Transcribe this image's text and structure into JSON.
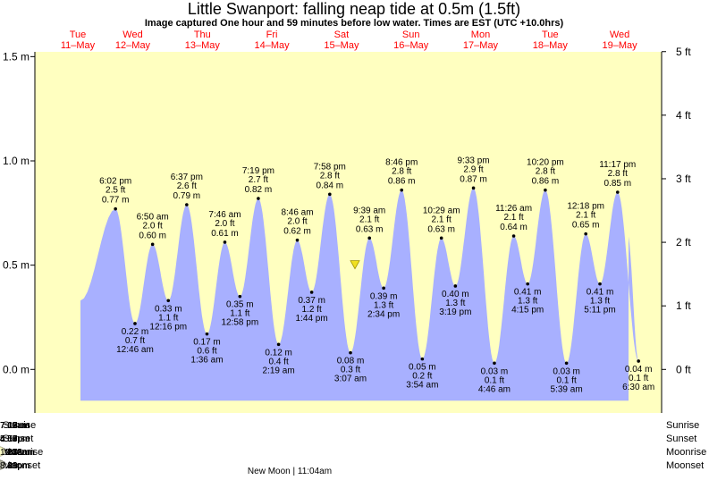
{
  "chart_data": {
    "type": "area",
    "title": "Little Swanport: falling  neap tide at 0.5m (1.5ft)",
    "subtitle": "Image captured One hour and 59 minutes before low water. Times are EST (UTC +10.0hrs)",
    "left_axis": {
      "ticks": [
        "1.5 m",
        "1.0 m",
        "0.5 m",
        "0.0 m"
      ],
      "ylim_m": [
        -0.15,
        1.52
      ]
    },
    "right_axis": {
      "ticks": [
        "5 ft",
        "4 ft",
        "3 ft",
        "2 ft",
        "1 ft",
        "0 ft"
      ]
    },
    "days": [
      {
        "name": "Tue",
        "date": "11–May"
      },
      {
        "name": "Wed",
        "date": "12–May"
      },
      {
        "name": "Thu",
        "date": "13–May"
      },
      {
        "name": "Fri",
        "date": "14–May"
      },
      {
        "name": "Sat",
        "date": "15–May"
      },
      {
        "name": "Sun",
        "date": "16–May"
      },
      {
        "name": "Mon",
        "date": "17–May"
      },
      {
        "name": "Tue",
        "date": "18–May"
      },
      {
        "name": "Wed",
        "date": "19–May"
      }
    ],
    "current_level_m": 0.5,
    "tides": [
      {
        "type": "high",
        "day": 0,
        "time": "6:02 pm",
        "ft": "2.5 ft",
        "m": 0.77
      },
      {
        "type": "low",
        "day": 1,
        "time": "12:46 am",
        "ft": "0.7 ft",
        "m": 0.22
      },
      {
        "type": "high",
        "day": 1,
        "time": "6:50 am",
        "ft": "2.0 ft",
        "m": 0.6
      },
      {
        "type": "low",
        "day": 1,
        "time": "12:16 pm",
        "ft": "1.1 ft",
        "m": 0.33
      },
      {
        "type": "high",
        "day": 1,
        "time": "6:37 pm",
        "ft": "2.6 ft",
        "m": 0.79
      },
      {
        "type": "low",
        "day": 2,
        "time": "1:36 am",
        "ft": "0.6 ft",
        "m": 0.17
      },
      {
        "type": "high",
        "day": 2,
        "time": "7:46 am",
        "ft": "2.0 ft",
        "m": 0.61
      },
      {
        "type": "low",
        "day": 2,
        "time": "12:58 pm",
        "ft": "1.1 ft",
        "m": 0.35
      },
      {
        "type": "high",
        "day": 2,
        "time": "7:19 pm",
        "ft": "2.7 ft",
        "m": 0.82
      },
      {
        "type": "low",
        "day": 3,
        "time": "2:19 am",
        "ft": "0.4 ft",
        "m": 0.12
      },
      {
        "type": "high",
        "day": 3,
        "time": "8:46 am",
        "ft": "2.0 ft",
        "m": 0.62
      },
      {
        "type": "low",
        "day": 3,
        "time": "1:44 pm",
        "ft": "1.2 ft",
        "m": 0.37
      },
      {
        "type": "high",
        "day": 3,
        "time": "7:58 pm",
        "ft": "2.8 ft",
        "m": 0.84
      },
      {
        "type": "low",
        "day": 4,
        "time": "3:07 am",
        "ft": "0.3 ft",
        "m": 0.08
      },
      {
        "type": "high",
        "day": 4,
        "time": "9:39 am",
        "ft": "2.1 ft",
        "m": 0.63
      },
      {
        "type": "low",
        "day": 4,
        "time": "2:34 pm",
        "ft": "1.3 ft",
        "m": 0.39
      },
      {
        "type": "high",
        "day": 4,
        "time": "8:46 pm",
        "ft": "2.8 ft",
        "m": 0.86
      },
      {
        "type": "low",
        "day": 5,
        "time": "3:54 am",
        "ft": "0.2 ft",
        "m": 0.05
      },
      {
        "type": "high",
        "day": 5,
        "time": "10:29 am",
        "ft": "2.1 ft",
        "m": 0.63
      },
      {
        "type": "low",
        "day": 5,
        "time": "3:19 pm",
        "ft": "1.3 ft",
        "m": 0.4
      },
      {
        "type": "high",
        "day": 5,
        "time": "9:33 pm",
        "ft": "2.9 ft",
        "m": 0.87
      },
      {
        "type": "low",
        "day": 6,
        "time": "4:46 am",
        "ft": "0.1 ft",
        "m": 0.03
      },
      {
        "type": "high",
        "day": 6,
        "time": "11:26 am",
        "ft": "2.1 ft",
        "m": 0.64
      },
      {
        "type": "low",
        "day": 6,
        "time": "4:15 pm",
        "ft": "1.3 ft",
        "m": 0.41
      },
      {
        "type": "high",
        "day": 6,
        "time": "10:20 pm",
        "ft": "2.8 ft",
        "m": 0.86
      },
      {
        "type": "low",
        "day": 7,
        "time": "5:39 am",
        "ft": "0.1 ft",
        "m": 0.03
      },
      {
        "type": "high",
        "day": 7,
        "time": "12:18 pm",
        "ft": "2.1 ft",
        "m": 0.65
      },
      {
        "type": "low",
        "day": 7,
        "time": "5:11 pm",
        "ft": "1.3 ft",
        "m": 0.41
      },
      {
        "type": "high",
        "day": 7,
        "time": "11:17 pm",
        "ft": "2.8 ft",
        "m": 0.85
      },
      {
        "type": "low",
        "day": 8,
        "time": "6:30 am",
        "ft": "0.1 ft",
        "m": 0.04
      }
    ],
    "rows": {
      "labels": [
        "Sunrise",
        "Sunset",
        "Moonrise",
        "Moonset"
      ],
      "sunrise": [
        {
          "day": 1,
          "time": "7:07am"
        },
        {
          "day": 2,
          "time": "7:08am"
        },
        {
          "day": 3,
          "time": "7:09am"
        },
        {
          "day": 4,
          "time": "7:10am"
        },
        {
          "day": 5,
          "time": "7:11am"
        },
        {
          "day": 6,
          "time": "7:12am"
        },
        {
          "day": 7,
          "time": "7:13am"
        }
      ],
      "sunset": [
        {
          "day": 1,
          "time": "5:00pm"
        },
        {
          "day": 2,
          "time": "4:59pm"
        },
        {
          "day": 3,
          "time": "4:58pm"
        },
        {
          "day": 4,
          "time": "4:57pm"
        },
        {
          "day": 5,
          "time": "4:56pm"
        },
        {
          "day": 6,
          "time": "4:55pm"
        },
        {
          "day": 7,
          "time": "4:54pm"
        },
        {
          "day": 8,
          "time": "4:53pm"
        }
      ],
      "moonrise": [
        {
          "day": 1,
          "time": "5:01am"
        },
        {
          "day": 2,
          "time": "6:08am"
        },
        {
          "day": 3,
          "time": "7:17am"
        },
        {
          "day": 4,
          "time": "8:24am"
        },
        {
          "day": 5,
          "time": "9:27am"
        },
        {
          "day": 6,
          "time": "10:22am"
        },
        {
          "day": 7,
          "time": "11:08am"
        }
      ],
      "moonset": [
        {
          "day": 1,
          "time": "3:29pm"
        },
        {
          "day": 2,
          "time": "4:01pm"
        },
        {
          "day": 3,
          "time": "4:40pm"
        },
        {
          "day": 4,
          "time": "5:28pm"
        },
        {
          "day": 5,
          "time": "6:26pm"
        },
        {
          "day": 6,
          "time": "7:33pm"
        },
        {
          "day": 7,
          "time": "8:46pm"
        }
      ]
    },
    "moon_phase_note": "New Moon | 11:04am",
    "colors": {
      "day_bg": "#ffffc0",
      "night_bg": "#a0a0a0",
      "water": "#a8b0ff",
      "day_label": "#ff0000",
      "sun_star": "#d4a21c",
      "sunset_star": "#d86a2a",
      "moonrise": "#ffffc8",
      "moonset": "#b0b0a0"
    }
  }
}
